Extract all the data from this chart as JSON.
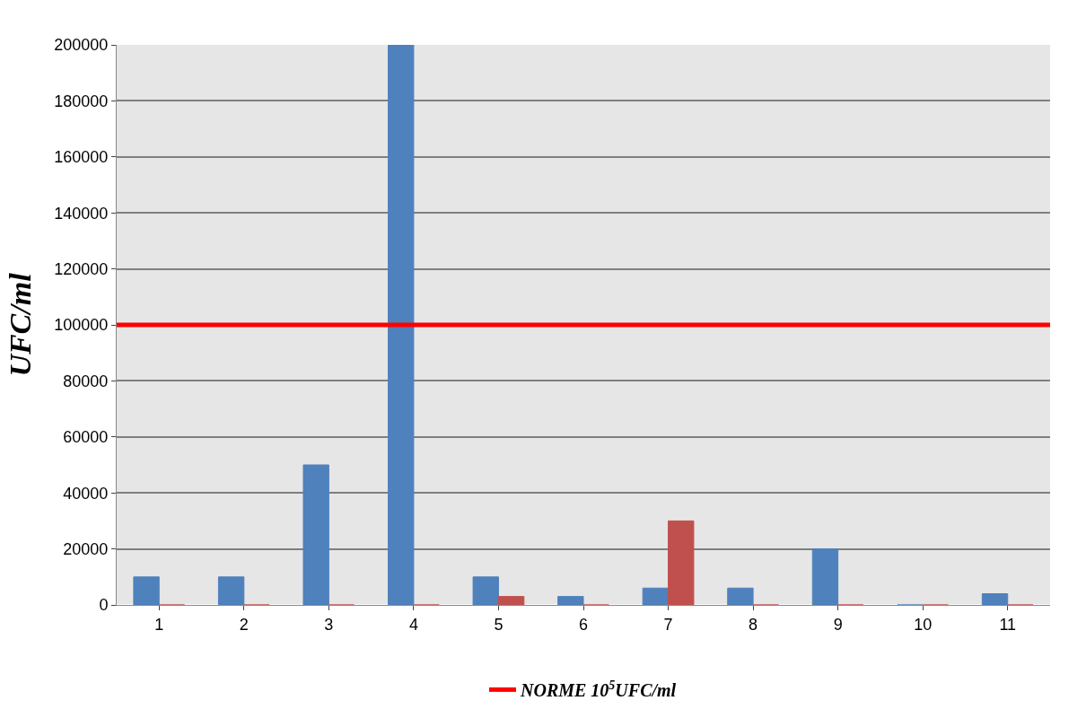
{
  "chart_data": {
    "type": "bar",
    "ylabel": "UFC/ml",
    "categories": [
      "1",
      "2",
      "3",
      "4",
      "5",
      "6",
      "7",
      "8",
      "9",
      "10",
      "11"
    ],
    "series": [
      {
        "color": "#4f81bd",
        "values": [
          10000,
          10000,
          50000,
          200000,
          10000,
          3000,
          6000,
          6000,
          20000,
          0,
          4000
        ]
      },
      {
        "color": "#c0504d",
        "values": [
          0,
          0,
          0,
          0,
          3000,
          0,
          30000,
          0,
          0,
          0,
          0
        ]
      }
    ],
    "ylim": [
      0,
      200000
    ],
    "yticks": [
      0,
      20000,
      40000,
      60000,
      80000,
      100000,
      120000,
      140000,
      160000,
      180000,
      200000
    ],
    "ref_lines": [
      {
        "axis": "y",
        "value": 100000,
        "label": "NORME 10$^{5}$UFC/ml",
        "color": "#ff0000"
      }
    ],
    "grid": "y",
    "legend": "bottom"
  }
}
